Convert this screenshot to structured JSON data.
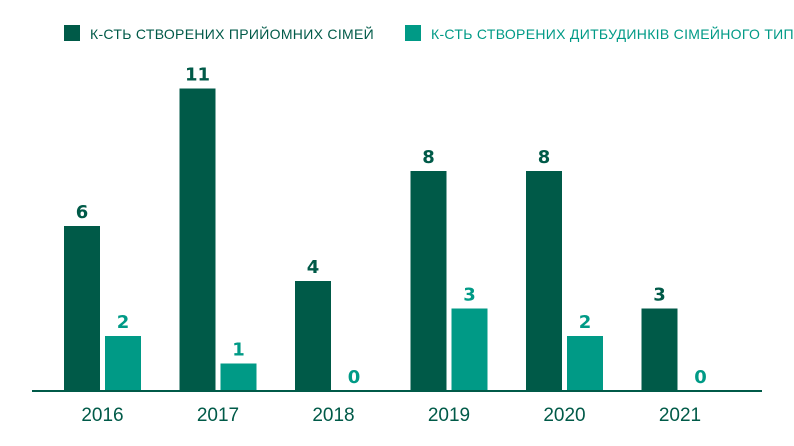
{
  "chart_data": {
    "type": "bar",
    "categories": [
      "2016",
      "2017",
      "2018",
      "2019",
      "2020",
      "2021"
    ],
    "series": [
      {
        "name": "К-СТЬ СТВОРЕНИХ ПРИЙОМНИХ СІМЕЙ",
        "values": [
          6,
          11,
          4,
          8,
          8,
          3
        ],
        "color": "#005a48"
      },
      {
        "name": "К-СТЬ СТВОРЕНИХ ДИТБУДИНКІВ СІМЕЙНОГО ТИПУ",
        "values": [
          2,
          1,
          0,
          3,
          2,
          0
        ],
        "color": "#009a86"
      }
    ],
    "data_labels": [
      [
        "6",
        "11",
        "4",
        "8",
        "8",
        "3"
      ],
      [
        "2",
        "1",
        "0",
        "3",
        "2",
        "0"
      ]
    ],
    "ylim": [
      0,
      11
    ],
    "grid": false,
    "legend": "top",
    "axis_color": "#005a48"
  }
}
